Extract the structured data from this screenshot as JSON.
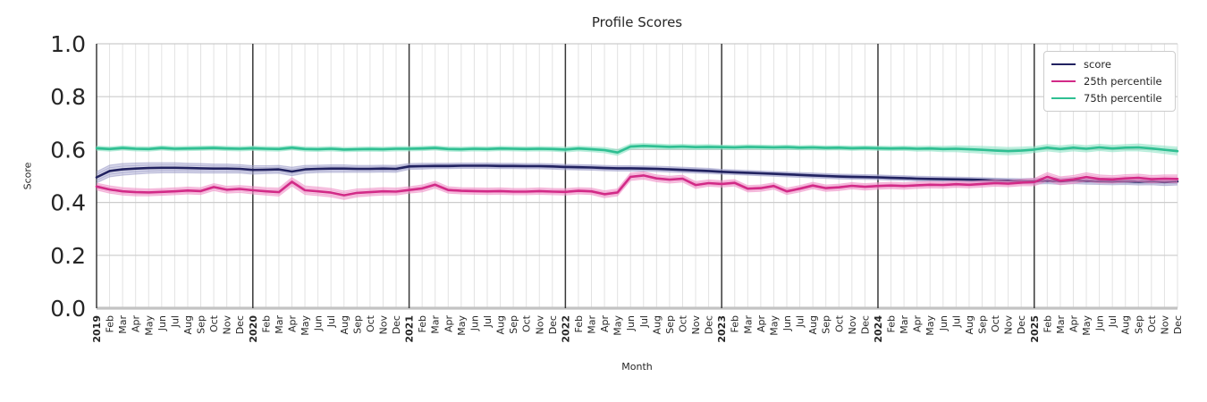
{
  "chart_data": {
    "type": "line",
    "title": "Profile Scores",
    "xlabel": "Month",
    "ylabel": "Score",
    "ylim": [
      0.0,
      1.0
    ],
    "ytick_labels": [
      "0.0",
      "0.2",
      "0.4",
      "0.6",
      "0.8",
      "1.0"
    ],
    "grid": "on",
    "legend_position": "upper right",
    "x_tick_labels": [
      "2019",
      "Feb",
      "Mar",
      "Apr",
      "May",
      "Jun",
      "Jul",
      "Aug",
      "Sep",
      "Oct",
      "Nov",
      "Dec",
      "2020",
      "Feb",
      "Mar",
      "Apr",
      "May",
      "Jun",
      "Jul",
      "Aug",
      "Sep",
      "Oct",
      "Nov",
      "Dec",
      "2021",
      "Feb",
      "Mar",
      "Apr",
      "May",
      "Jun",
      "Jul",
      "Aug",
      "Sep",
      "Oct",
      "Nov",
      "Dec",
      "2022",
      "Feb",
      "Mar",
      "Apr",
      "May",
      "Jun",
      "Jul",
      "Aug",
      "Sep",
      "Oct",
      "Nov",
      "Dec",
      "2023",
      "Feb",
      "Mar",
      "Apr",
      "May",
      "Jun",
      "Jul",
      "Aug",
      "Sep",
      "Oct",
      "Nov",
      "Dec",
      "2024",
      "Feb",
      "Mar",
      "Apr",
      "May",
      "Jun",
      "Jul",
      "Aug",
      "Sep",
      "Oct",
      "Nov",
      "Dec",
      "2025",
      "Feb",
      "Mar",
      "Apr",
      "May",
      "Jun",
      "Jul",
      "Aug",
      "Sep",
      "Oct",
      "Nov",
      "Dec"
    ],
    "series": [
      {
        "name": "score",
        "color": "#212260",
        "band_color": "#9a9bc8",
        "values": [
          0.495,
          0.519,
          0.525,
          0.528,
          0.53,
          0.531,
          0.531,
          0.53,
          0.529,
          0.528,
          0.528,
          0.527,
          0.523,
          0.524,
          0.525,
          0.517,
          0.525,
          0.527,
          0.528,
          0.528,
          0.527,
          0.527,
          0.528,
          0.527,
          0.536,
          0.537,
          0.538,
          0.538,
          0.539,
          0.539,
          0.539,
          0.538,
          0.538,
          0.537,
          0.537,
          0.536,
          0.534,
          0.533,
          0.532,
          0.53,
          0.529,
          0.529,
          0.528,
          0.527,
          0.525,
          0.523,
          0.521,
          0.519,
          0.516,
          0.514,
          0.512,
          0.51,
          0.508,
          0.506,
          0.504,
          0.502,
          0.5,
          0.498,
          0.497,
          0.496,
          0.495,
          0.493,
          0.492,
          0.49,
          0.489,
          0.488,
          0.487,
          0.486,
          0.485,
          0.483,
          0.482,
          0.481,
          0.48,
          0.482,
          0.48,
          0.483,
          0.481,
          0.48,
          0.479,
          0.48,
          0.478,
          0.479,
          0.477,
          0.479
        ],
        "band_halfwidth": [
          0.021,
          0.022,
          0.022,
          0.021,
          0.02,
          0.019,
          0.019,
          0.018,
          0.018,
          0.017,
          0.017,
          0.016,
          0.016,
          0.015,
          0.015,
          0.016,
          0.015,
          0.014,
          0.014,
          0.014,
          0.013,
          0.013,
          0.013,
          0.013,
          0.011,
          0.011,
          0.01,
          0.01,
          0.01,
          0.01,
          0.01,
          0.01,
          0.01,
          0.01,
          0.01,
          0.01,
          0.01,
          0.01,
          0.01,
          0.01,
          0.01,
          0.01,
          0.01,
          0.01,
          0.01,
          0.01,
          0.01,
          0.01,
          0.009,
          0.009,
          0.009,
          0.009,
          0.009,
          0.009,
          0.009,
          0.009,
          0.009,
          0.009,
          0.009,
          0.009,
          0.009,
          0.009,
          0.009,
          0.009,
          0.009,
          0.009,
          0.009,
          0.009,
          0.009,
          0.009,
          0.009,
          0.009,
          0.011,
          0.011,
          0.012,
          0.012,
          0.012,
          0.012,
          0.012,
          0.012,
          0.012,
          0.012,
          0.013,
          0.013
        ]
      },
      {
        "name": "25th percentile",
        "color": "#d22a87",
        "band_color": "#ef8ec6",
        "values": [
          0.46,
          0.449,
          0.442,
          0.439,
          0.438,
          0.44,
          0.442,
          0.445,
          0.443,
          0.458,
          0.448,
          0.451,
          0.446,
          0.442,
          0.439,
          0.478,
          0.446,
          0.442,
          0.437,
          0.427,
          0.436,
          0.439,
          0.442,
          0.441,
          0.447,
          0.453,
          0.467,
          0.447,
          0.444,
          0.443,
          0.442,
          0.443,
          0.441,
          0.441,
          0.443,
          0.441,
          0.44,
          0.444,
          0.442,
          0.431,
          0.438,
          0.497,
          0.502,
          0.491,
          0.486,
          0.49,
          0.466,
          0.473,
          0.47,
          0.474,
          0.452,
          0.454,
          0.462,
          0.442,
          0.452,
          0.464,
          0.454,
          0.457,
          0.463,
          0.459,
          0.462,
          0.464,
          0.462,
          0.465,
          0.467,
          0.466,
          0.469,
          0.467,
          0.47,
          0.473,
          0.471,
          0.475,
          0.477,
          0.497,
          0.482,
          0.487,
          0.496,
          0.489,
          0.487,
          0.491,
          0.493,
          0.488,
          0.49,
          0.489
        ],
        "band_halfwidth": [
          0.013,
          0.014,
          0.014,
          0.014,
          0.013,
          0.013,
          0.013,
          0.013,
          0.013,
          0.013,
          0.013,
          0.013,
          0.014,
          0.014,
          0.015,
          0.016,
          0.016,
          0.016,
          0.016,
          0.016,
          0.015,
          0.014,
          0.014,
          0.013,
          0.012,
          0.013,
          0.013,
          0.012,
          0.012,
          0.012,
          0.012,
          0.012,
          0.012,
          0.012,
          0.012,
          0.012,
          0.012,
          0.012,
          0.012,
          0.013,
          0.013,
          0.014,
          0.014,
          0.013,
          0.013,
          0.013,
          0.013,
          0.012,
          0.012,
          0.012,
          0.012,
          0.012,
          0.012,
          0.012,
          0.012,
          0.012,
          0.012,
          0.012,
          0.012,
          0.012,
          0.012,
          0.012,
          0.012,
          0.012,
          0.012,
          0.012,
          0.012,
          0.012,
          0.012,
          0.012,
          0.012,
          0.012,
          0.014,
          0.016,
          0.015,
          0.015,
          0.016,
          0.015,
          0.014,
          0.014,
          0.014,
          0.014,
          0.014,
          0.015
        ]
      },
      {
        "name": "75th percentile",
        "color": "#2fbf92",
        "band_color": "#8fe3c6",
        "values": [
          0.605,
          0.602,
          0.606,
          0.603,
          0.602,
          0.606,
          0.603,
          0.604,
          0.605,
          0.606,
          0.604,
          0.603,
          0.605,
          0.603,
          0.602,
          0.607,
          0.602,
          0.601,
          0.603,
          0.6,
          0.601,
          0.602,
          0.601,
          0.603,
          0.603,
          0.604,
          0.606,
          0.602,
          0.601,
          0.603,
          0.602,
          0.604,
          0.603,
          0.602,
          0.603,
          0.602,
          0.6,
          0.604,
          0.601,
          0.598,
          0.589,
          0.611,
          0.614,
          0.612,
          0.61,
          0.611,
          0.609,
          0.61,
          0.609,
          0.608,
          0.61,
          0.609,
          0.608,
          0.609,
          0.607,
          0.608,
          0.606,
          0.607,
          0.605,
          0.606,
          0.605,
          0.604,
          0.605,
          0.603,
          0.604,
          0.602,
          0.603,
          0.601,
          0.599,
          0.596,
          0.594,
          0.596,
          0.6,
          0.607,
          0.602,
          0.607,
          0.603,
          0.608,
          0.604,
          0.607,
          0.608,
          0.604,
          0.599,
          0.594
        ],
        "band_halfwidth": [
          0.008,
          0.008,
          0.008,
          0.008,
          0.008,
          0.008,
          0.008,
          0.008,
          0.008,
          0.008,
          0.008,
          0.008,
          0.008,
          0.008,
          0.008,
          0.008,
          0.008,
          0.008,
          0.008,
          0.008,
          0.008,
          0.008,
          0.008,
          0.008,
          0.008,
          0.008,
          0.008,
          0.008,
          0.008,
          0.008,
          0.008,
          0.008,
          0.008,
          0.008,
          0.008,
          0.008,
          0.009,
          0.009,
          0.009,
          0.01,
          0.011,
          0.01,
          0.009,
          0.009,
          0.009,
          0.009,
          0.009,
          0.009,
          0.008,
          0.008,
          0.008,
          0.008,
          0.008,
          0.008,
          0.008,
          0.008,
          0.008,
          0.008,
          0.008,
          0.008,
          0.008,
          0.008,
          0.008,
          0.009,
          0.009,
          0.01,
          0.011,
          0.012,
          0.013,
          0.014,
          0.014,
          0.013,
          0.011,
          0.012,
          0.012,
          0.012,
          0.012,
          0.012,
          0.012,
          0.012,
          0.013,
          0.013,
          0.014,
          0.015
        ]
      }
    ],
    "style": {
      "text_color": "#262626",
      "grid_minor_color": "#e2e2e2",
      "grid_major_color": "#cccccc",
      "baseline_color": "#c3c3c3",
      "year_line_color": "#383838",
      "background": "#ffffff"
    }
  }
}
